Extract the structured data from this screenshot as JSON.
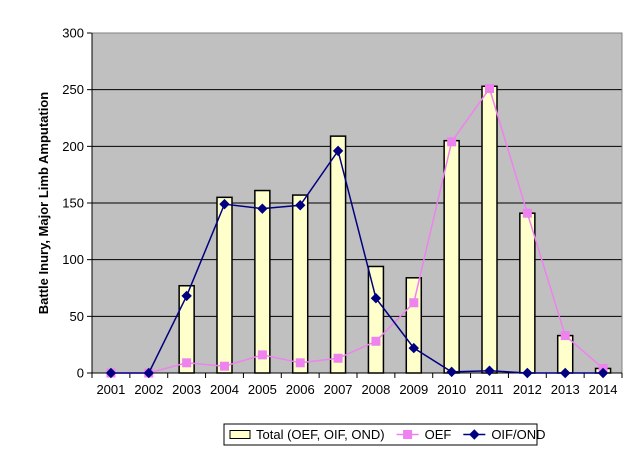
{
  "chart_data": {
    "type": "bar",
    "title": "",
    "xlabel": "",
    "ylabel": "Battle Inury, Major Limb Amputation",
    "ylim": [
      0,
      300
    ],
    "yticks": [
      0,
      50,
      100,
      150,
      200,
      250,
      300
    ],
    "grid": true,
    "legend_position": "bottom",
    "categories": [
      "2001",
      "2002",
      "2003",
      "2004",
      "2005",
      "2006",
      "2007",
      "2008",
      "2009",
      "2010",
      "2011",
      "2012",
      "2013",
      "2014"
    ],
    "series": [
      {
        "name": "Total (OEF, OIF, OND)",
        "kind": "bar",
        "color": "#FFFFCC",
        "values": [
          0,
          0,
          77,
          155,
          161,
          157,
          209,
          94,
          84,
          205,
          253,
          141,
          33,
          4
        ]
      },
      {
        "name": "OEF",
        "kind": "line",
        "color": "#EE82EE",
        "marker": "square",
        "values": [
          0,
          0,
          9,
          6,
          16,
          9,
          13,
          28,
          62,
          204,
          251,
          141,
          33,
          4
        ]
      },
      {
        "name": "OIF/OND",
        "kind": "line",
        "color": "#000080",
        "marker": "diamond",
        "values": [
          0,
          0,
          68,
          149,
          145,
          148,
          196,
          66,
          22,
          1,
          2,
          0,
          0,
          0
        ]
      }
    ]
  }
}
